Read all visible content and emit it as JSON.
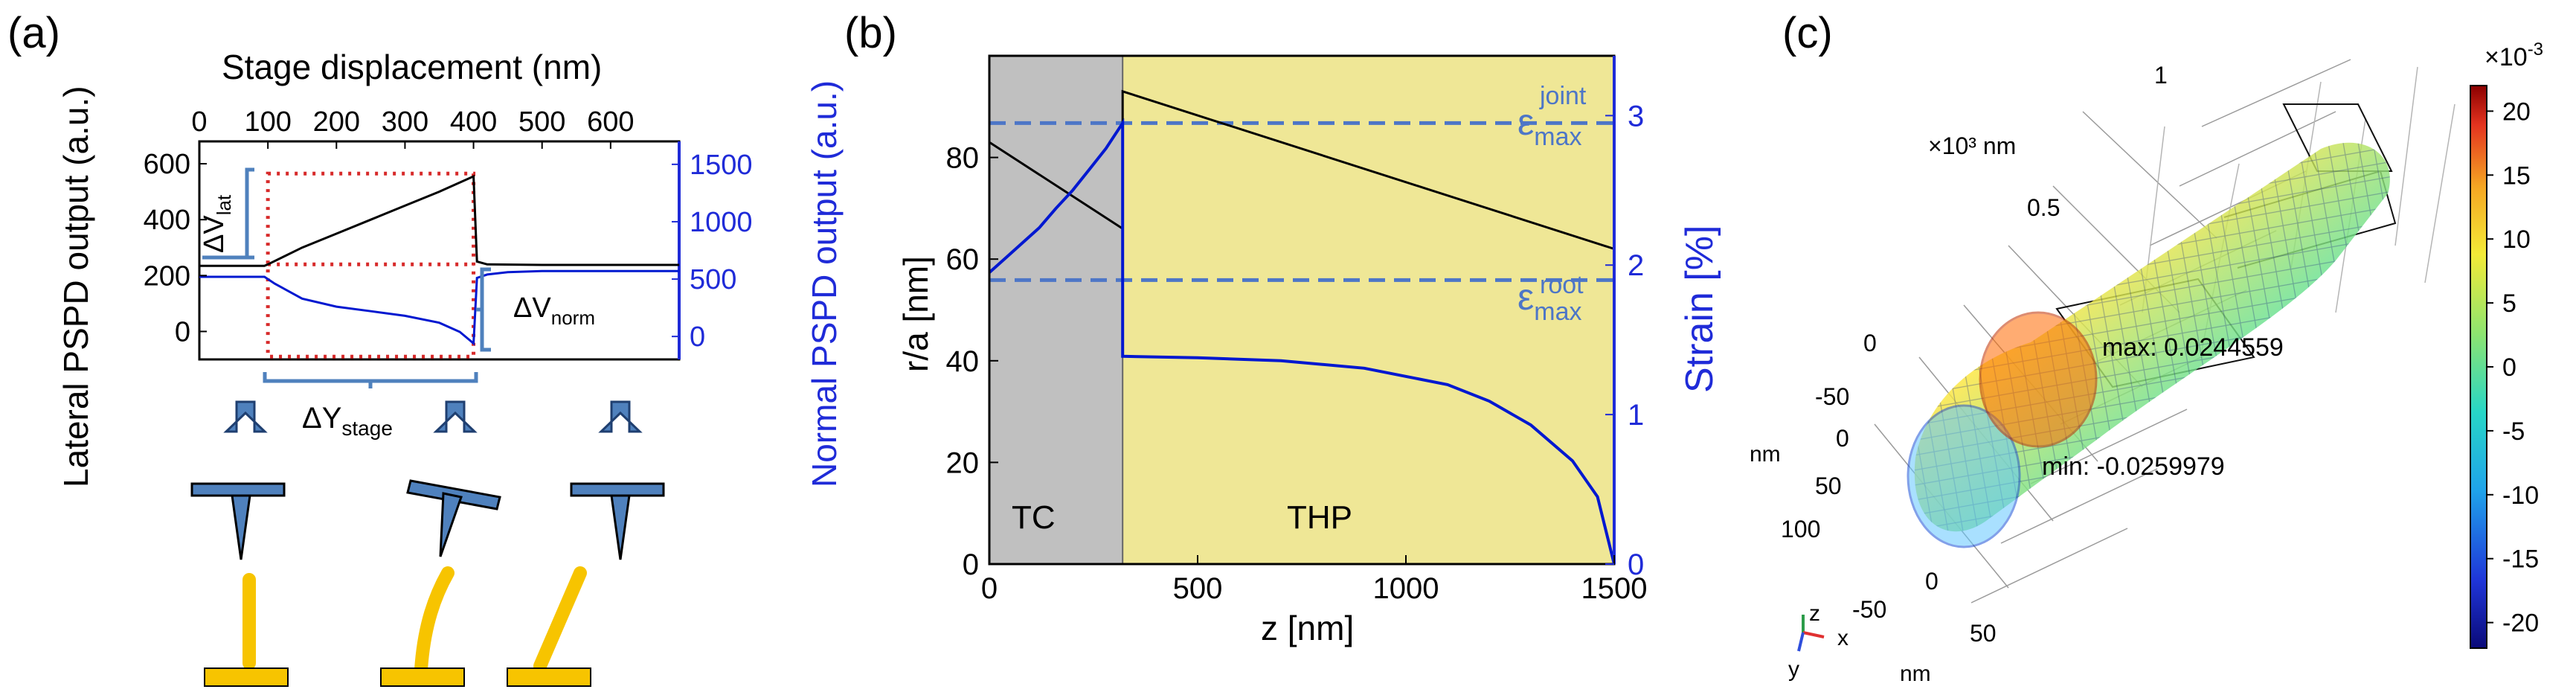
{
  "panels": {
    "a": {
      "label": "(a)"
    },
    "b": {
      "label": "(b)"
    },
    "c": {
      "label": "(c)"
    }
  },
  "colors": {
    "red_dash": "#d72a2a",
    "blue_curve": "#0018d0",
    "light_blue": "#4d76c7",
    "gray_region": "#c0c0c0",
    "yellow_region": "#efe796",
    "tip_fill": "#4f81bd",
    "yellow_fiber": "#f7c400"
  },
  "chart_data": [
    {
      "panel": "a",
      "type": "line",
      "title": "Stage displacement (nm)",
      "xlabel": "Stage displacement (nm)",
      "ylabel": "Lateral PSPD output (a.u.)",
      "ylabel_right": "Normal PSPD output (a.u.)",
      "xlim": [
        0,
        700
      ],
      "ylim": [
        -100,
        680
      ],
      "ylim_right": [
        -200,
        1700
      ],
      "x_ticks": [
        "0",
        "100",
        "200",
        "300",
        "400",
        "500",
        "600"
      ],
      "y_ticks": [
        "600",
        "400",
        "200",
        "0"
      ],
      "y_right_ticks": [
        "1500",
        "1000",
        "500",
        "0"
      ],
      "series": [
        {
          "name": "Lateral PSPD output",
          "axis": "left",
          "color": "#000000",
          "x": [
            0,
            95,
            100,
            150,
            200,
            250,
            300,
            350,
            400,
            405,
            420,
            500,
            600,
            700
          ],
          "y": [
            235,
            235,
            240,
            300,
            350,
            400,
            450,
            500,
            555,
            250,
            240,
            238,
            238,
            238
          ]
        },
        {
          "name": "Normal PSPD output",
          "axis": "right",
          "color": "#0018d0",
          "x": [
            0,
            95,
            110,
            150,
            200,
            250,
            300,
            350,
            380,
            400,
            405,
            420,
            450,
            500,
            600,
            700
          ],
          "y": [
            520,
            520,
            460,
            330,
            260,
            220,
            180,
            120,
            40,
            -60,
            510,
            540,
            560,
            570,
            570,
            570
          ]
        }
      ],
      "guides": {
        "box_x": [
          100,
          400
        ],
        "box_y": [
          -90,
          565
        ],
        "mid_y": 240
      },
      "annotations": {
        "dv_lat": "ΔV",
        "dv_lat_sub": "lat",
        "dv_norm": "ΔV",
        "dv_norm_sub": "norm",
        "dy_stage": "ΔY",
        "dy_stage_sub": "stage"
      }
    },
    {
      "panel": "b",
      "type": "line",
      "xlabel": "z [nm]",
      "ylabel": "r/a [nm]",
      "ylabel_right": "Strain [%]",
      "xlim": [
        0,
        1500
      ],
      "ylim": [
        0,
        100
      ],
      "ylim_right": [
        0,
        3.4
      ],
      "x_ticks": [
        "0",
        "500",
        "1000",
        "1500"
      ],
      "y_ticks": [
        "0",
        "20",
        "40",
        "60",
        "80"
      ],
      "y_right_ticks": [
        "0",
        "1",
        "2",
        "3"
      ],
      "regions": [
        {
          "name": "TC",
          "label": "TC",
          "x_range": [
            0,
            320
          ]
        },
        {
          "name": "THP",
          "label": "THP",
          "x_range": [
            320,
            1500
          ]
        }
      ],
      "series": [
        {
          "name": "r/a radius",
          "axis": "left",
          "color": "#000000",
          "x": [
            0,
            320,
            320,
            1500
          ],
          "y": [
            83,
            66,
            93,
            62
          ]
        },
        {
          "name": "Strain",
          "axis": "right",
          "color": "#0018d0",
          "x": [
            0,
            40,
            80,
            120,
            160,
            200,
            240,
            280,
            320,
            320,
            320,
            500,
            700,
            900,
            1100,
            1200,
            1300,
            1400,
            1460,
            1500
          ],
          "y": [
            1.95,
            2.05,
            2.15,
            2.25,
            2.38,
            2.5,
            2.64,
            2.78,
            2.95,
            2.95,
            1.39,
            1.38,
            1.36,
            1.31,
            1.2,
            1.09,
            0.93,
            0.69,
            0.45,
            0.0
          ]
        }
      ],
      "reference_lines": [
        {
          "name": "joint",
          "label": "ε",
          "sup": "joint",
          "sub": "max",
          "strain": 2.95,
          "color": "#4d76c7"
        },
        {
          "name": "root",
          "label": "ε",
          "sup": "root",
          "sub": "max",
          "strain": 1.9,
          "color": "#4d76c7"
        }
      ]
    },
    {
      "panel": "c",
      "type": "heatmap",
      "colorbar_title": "×10",
      "colorbar_exponent": "-3",
      "colorbar_range": [
        -22,
        22
      ],
      "colorbar_ticks": [
        "20",
        "15",
        "10",
        "5",
        "0",
        "-5",
        "-10",
        "-15",
        "-20"
      ],
      "axis_scale_label": "×10³ nm",
      "axis_ticks_vertical": [
        "1",
        "0.5",
        "0"
      ],
      "axis_ticks_depth": [
        "-50",
        "0",
        "50",
        "100"
      ],
      "axis_ticks_width": [
        "-50",
        "0",
        "50"
      ],
      "axis_unit_left": "nm",
      "axis_unit_bottom": "nm",
      "max_label": "max: 0.0244559",
      "min_label": "min: -0.0259979",
      "triad": {
        "z": "z",
        "x": "x",
        "y": "y"
      }
    }
  ]
}
